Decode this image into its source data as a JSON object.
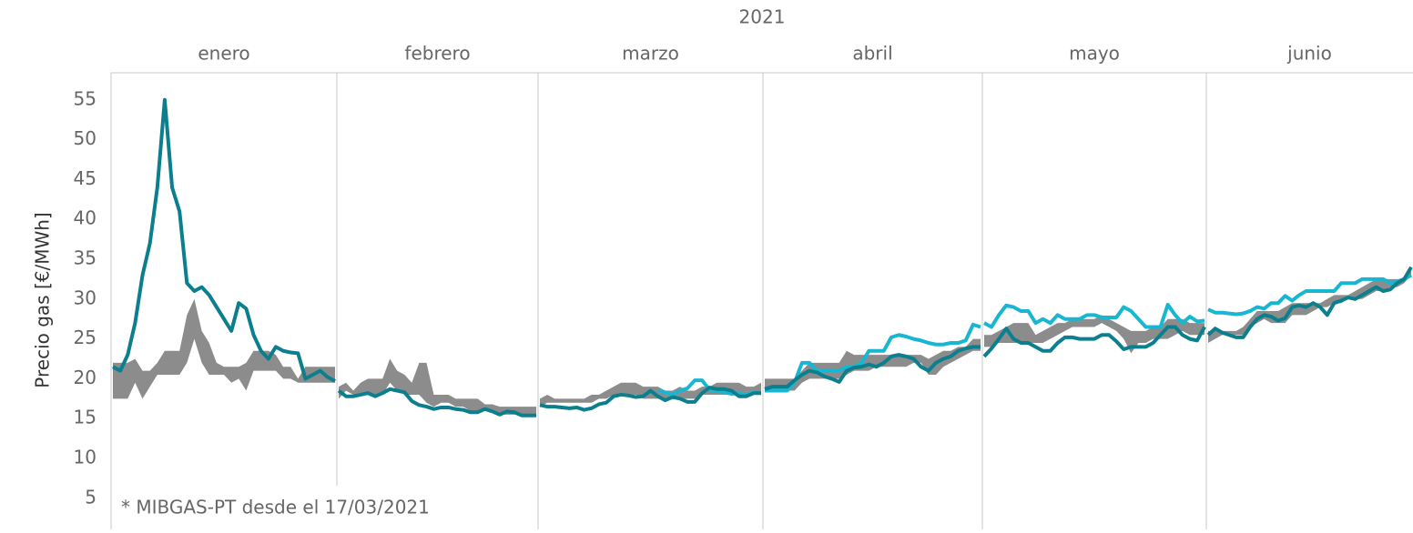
{
  "chart_data": {
    "type": "line",
    "title": "2021",
    "y_label": "Precio gas [€/MWh]",
    "annotation": "* MIBGAS-PT desde el 17/03/2021",
    "ylim": [
      1.1,
      58.4
    ],
    "yticks": [
      5,
      10,
      15,
      20,
      25,
      30,
      35,
      40,
      45,
      50,
      55
    ],
    "band_color": "#8c8c8c",
    "panels": [
      {
        "label": "enero",
        "band_low": [
          17.5,
          17.5,
          17.5,
          19.5,
          17.5,
          19,
          20.5,
          20.5,
          20.5,
          20.5,
          22,
          25,
          22,
          20.5,
          20.5,
          20.5,
          19.5,
          20,
          18.5,
          21,
          21,
          21,
          21,
          20,
          20,
          19.5,
          19.5,
          19.5,
          19.5,
          19.5,
          19.5
        ],
        "band_high": [
          22,
          22,
          22,
          22.5,
          21,
          21,
          22,
          23.5,
          23.5,
          23.5,
          28,
          30,
          26,
          24.5,
          22,
          21.5,
          21.5,
          21.5,
          22,
          23.5,
          23.5,
          23.5,
          23,
          21.5,
          21.5,
          20,
          21.5,
          21.5,
          21.5,
          21.5,
          21.5
        ],
        "series": [
          {
            "color": "#0b7f8e",
            "values": [
              21.5,
              21,
              23,
              27,
              33,
              37,
              44,
              55,
              44,
              41,
              32,
              31,
              31.5,
              30.5,
              29,
              27.5,
              26,
              29.5,
              28.8,
              25.5,
              23.5,
              22.5,
              24,
              23.5,
              23.3,
              23.2,
              20,
              20.5,
              21,
              20.2,
              19.7
            ]
          }
        ]
      },
      {
        "label": "febrero",
        "band_low": [
          17.5,
          18.5,
          18,
          18,
          18,
          18,
          18,
          19.5,
          18.5,
          18,
          18,
          18,
          17,
          16.5,
          17,
          17,
          16.5,
          16.5,
          16,
          16,
          16,
          16,
          15.5,
          15.5,
          15.5,
          15.5,
          15.5,
          15.5
        ],
        "band_high": [
          19,
          19.5,
          18.5,
          19.5,
          20,
          20,
          20,
          22.5,
          21,
          20.5,
          19.5,
          22,
          22,
          18,
          18,
          18,
          17.5,
          17.5,
          17.5,
          17.5,
          16.8,
          16.8,
          16.5,
          16.5,
          16.5,
          16.5,
          16.5,
          16.5
        ],
        "series": [
          {
            "color": "#0b7f8e",
            "values": [
              18.5,
              17.8,
              17.8,
              18,
              18.2,
              17.8,
              18.2,
              18.7,
              18.5,
              18.3,
              17.2,
              16.7,
              16.5,
              16.2,
              16.4,
              16.4,
              16.2,
              16.1,
              15.8,
              15.8,
              16.2,
              15.9,
              15.5,
              15.9,
              15.8,
              15.4,
              15.4,
              15.4
            ]
          }
        ]
      },
      {
        "label": "marzo",
        "band_low": [
          16.5,
          17,
          17,
          17,
          17,
          17,
          17,
          17,
          17.5,
          17.5,
          18,
          18,
          18,
          18,
          17.5,
          17.5,
          17.5,
          17.5,
          17.5,
          17.5,
          17.5,
          17.5,
          18,
          18,
          18,
          18,
          18,
          18,
          18,
          18,
          18.5
        ],
        "band_high": [
          17.5,
          18,
          17.5,
          17.5,
          17.5,
          17.5,
          17.5,
          18,
          18,
          18.5,
          19,
          19.5,
          19.5,
          19.5,
          19,
          19,
          19,
          18.5,
          18.5,
          19,
          18.5,
          18.5,
          19,
          19,
          19.5,
          19.5,
          19.5,
          19.5,
          19,
          19,
          19.5
        ],
        "series": [
          {
            "color": "#19b6d2",
            "values": [
              null,
              null,
              null,
              null,
              null,
              null,
              null,
              null,
              null,
              null,
              null,
              null,
              null,
              null,
              null,
              null,
              18.5,
              18.3,
              18,
              18.5,
              18.8,
              19.8,
              19.8,
              18.6,
              18.5,
              18.3,
              18.1,
              18.2,
              18,
              18.3,
              18.3
            ]
          },
          {
            "color": "#0b7f8e",
            "values": [
              16.7,
              16.5,
              16.5,
              16.4,
              16.3,
              16.4,
              16.1,
              16.3,
              16.8,
              17,
              17.8,
              18,
              17.9,
              17.7,
              17.8,
              18.5,
              17.8,
              17.3,
              17.7,
              17.5,
              17.1,
              17.1,
              18.2,
              18.9,
              18.7,
              18.7,
              18.5,
              17.8,
              17.8,
              18.2,
              18.2
            ]
          }
        ]
      },
      {
        "label": "abril",
        "band_low": [
          18.5,
          18.5,
          18.5,
          18.5,
          18.5,
          19.5,
          20,
          20,
          20,
          20,
          20,
          20.5,
          21,
          21,
          21,
          21.5,
          21.5,
          21.5,
          21.5,
          21.5,
          22,
          22,
          20.5,
          20.5,
          21.5,
          22,
          22.5,
          23,
          23.5,
          23.5
        ],
        "band_high": [
          20,
          20,
          20,
          20,
          20,
          21,
          22,
          22,
          22,
          22,
          22,
          23.5,
          23,
          23,
          23,
          23,
          23,
          23,
          23,
          23,
          23,
          23,
          22.5,
          23,
          23.5,
          23.5,
          24,
          24,
          25,
          25
        ],
        "series": [
          {
            "color": "#19b6d2",
            "values": [
              18.5,
              18.5,
              18.5,
              18.5,
              19.5,
              22,
              22,
              21,
              21,
              21,
              21,
              21.5,
              21.5,
              22,
              23.5,
              23.5,
              23.5,
              25.2,
              25.5,
              25.3,
              25,
              24.8,
              24.5,
              24.3,
              24.3,
              24.5,
              24.5,
              24.8,
              26.8,
              26.5
            ]
          },
          {
            "color": "#0b7f8e",
            "values": [
              18.7,
              19,
              19,
              19,
              19.8,
              20.5,
              21,
              20.8,
              20.3,
              20,
              19.6,
              21,
              21.4,
              21.5,
              21.8,
              21.5,
              22,
              22.8,
              23,
              22.8,
              22.5,
              21.5,
              21,
              22,
              22.5,
              22.8,
              23.5,
              23.8,
              24,
              24
            ]
          }
        ]
      },
      {
        "label": "mayo",
        "band_low": [
          24,
          24,
          24.5,
          24.5,
          24.5,
          24.5,
          24.5,
          24.5,
          24.5,
          25,
          25.5,
          26,
          26.5,
          26.5,
          26.5,
          26.5,
          27,
          26.5,
          26,
          25,
          23.2,
          24.5,
          24.5,
          25,
          25,
          25,
          25.5,
          26,
          25.5,
          25.5,
          25.5
        ],
        "band_high": [
          25.5,
          25.5,
          26,
          26.5,
          27,
          27,
          27,
          25.5,
          26,
          26.5,
          27,
          27,
          27.5,
          27.5,
          27.5,
          27.5,
          28,
          27.5,
          27,
          26.5,
          26,
          26,
          26,
          26.5,
          26.5,
          27.5,
          27.5,
          27.5,
          27,
          27,
          27
        ],
        "series": [
          {
            "color": "#19b6d2",
            "values": [
              27,
              26.5,
              28,
              29.2,
              29,
              28.5,
              28.5,
              27,
              27.5,
              27,
              28,
              27.5,
              27.5,
              27.5,
              28,
              28,
              27.7,
              27.7,
              27.7,
              29,
              28.5,
              27.5,
              26.5,
              26.5,
              26.5,
              29.3,
              28,
              27,
              27.8,
              27.2,
              27.3
            ]
          },
          {
            "color": "#0b7f8e",
            "values": [
              22.8,
              23.8,
              25,
              26.3,
              25,
              24.5,
              24.5,
              24,
              23.5,
              23.5,
              24.5,
              25.2,
              25.2,
              25,
              25,
              25,
              25.5,
              25.5,
              24.7,
              23.7,
              24,
              24,
              24,
              24.5,
              25.5,
              26.5,
              26.5,
              25.5,
              25,
              24.8,
              26.5
            ]
          }
        ]
      },
      {
        "label": "junio",
        "band_low": [
          24.5,
          25,
          25.5,
          25.5,
          25.5,
          25.5,
          26.5,
          27,
          27.5,
          27,
          27,
          27,
          28,
          28,
          28,
          28.5,
          29,
          29,
          29.5,
          29.5,
          30,
          30,
          30,
          30.5,
          31,
          31,
          31.5,
          31.5,
          32,
          33
        ],
        "band_high": [
          26,
          26,
          26,
          26,
          26,
          26.5,
          27.5,
          28.5,
          28.5,
          28.5,
          28.5,
          29,
          29.5,
          29.5,
          29.5,
          29.5,
          29.5,
          30,
          30.5,
          30.5,
          30.5,
          31,
          31.5,
          32,
          32.5,
          32.5,
          32.5,
          32.5,
          32.5,
          34
        ],
        "series": [
          {
            "color": "#19b6d2",
            "values": [
              28.7,
              28.3,
              28.3,
              28.2,
              28.1,
              28.2,
              28.5,
              29,
              28.8,
              29.5,
              29.5,
              30.4,
              29.8,
              30.5,
              31,
              31,
              31,
              31,
              31,
              32,
              32,
              32,
              32.5,
              32.5,
              32.5,
              32.5,
              32,
              32.2,
              32.5,
              33
            ]
          },
          {
            "color": "#0b7f8e",
            "values": [
              25.5,
              26.3,
              25.8,
              25.5,
              25.2,
              25.2,
              26.5,
              27.5,
              28,
              27.8,
              27.3,
              27.6,
              29,
              29.2,
              29,
              29.5,
              29,
              28,
              29.5,
              29.8,
              30.2,
              30,
              30.5,
              31,
              31.5,
              31,
              31.2,
              32,
              32.5,
              34
            ]
          }
        ]
      }
    ]
  }
}
